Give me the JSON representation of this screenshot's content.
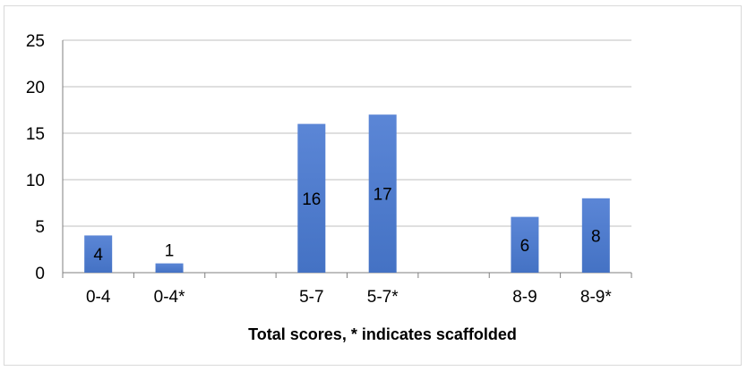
{
  "chart_data": {
    "type": "bar",
    "categories": [
      "0-4",
      "0-4*",
      "",
      "5-7",
      "5-7*",
      "",
      "8-9",
      "8-9*"
    ],
    "values": [
      4,
      1,
      null,
      16,
      17,
      null,
      6,
      8
    ],
    "data_labels": [
      "4",
      "1",
      "",
      "16",
      "17",
      "",
      "6",
      "8"
    ],
    "title": "",
    "xlabel": "Total scores, * indicates scaffolded",
    "ylabel": "",
    "ylim": [
      0,
      25
    ],
    "yticks": [
      0,
      5,
      10,
      15,
      20,
      25
    ],
    "grid": true,
    "legend": "none",
    "bar_color": "#4472c4",
    "bar_color_light": "#5b86d6"
  }
}
